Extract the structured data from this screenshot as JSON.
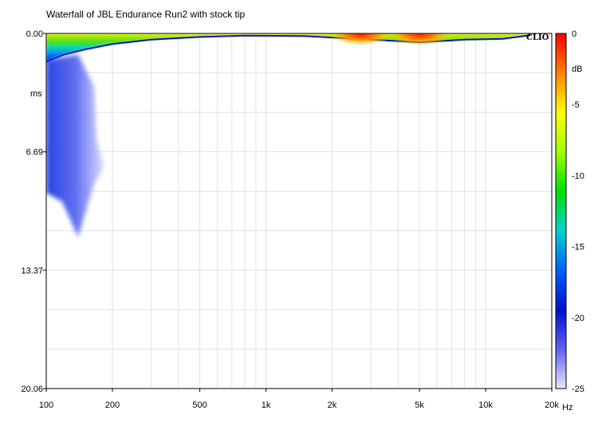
{
  "chart_data": {
    "type": "heatmap",
    "title": "Waterfall of JBL Endurance Run2 with stock tip",
    "xlabel": "Hz",
    "ylabel": "ms",
    "x_scale": "log",
    "xlim": [
      100,
      20000
    ],
    "ylim": [
      0,
      20.06
    ],
    "x_ticks": [
      {
        "value": 100,
        "label": "100"
      },
      {
        "value": 200,
        "label": "200"
      },
      {
        "value": 500,
        "label": "500"
      },
      {
        "value": 1000,
        "label": "1k"
      },
      {
        "value": 2000,
        "label": "2k"
      },
      {
        "value": 5000,
        "label": "5k"
      },
      {
        "value": 10000,
        "label": "10k"
      },
      {
        "value": 20000,
        "label": "20k"
      }
    ],
    "y_ticks": [
      {
        "value": 0,
        "label": "0.00"
      },
      {
        "value": 6.69,
        "label": "6.69"
      },
      {
        "value": 13.37,
        "label": "13.37"
      },
      {
        "value": 20.06,
        "label": "20.06"
      }
    ],
    "colorbar": {
      "label": "dB",
      "range": [
        -25,
        0
      ],
      "ticks": [
        {
          "value": 0,
          "label": "0"
        },
        {
          "value": -5,
          "label": "-5"
        },
        {
          "value": -10,
          "label": "-10"
        },
        {
          "value": -15,
          "label": "-15"
        },
        {
          "value": -20,
          "label": "-20"
        },
        {
          "value": -25,
          "label": "-25"
        }
      ],
      "stops": [
        "#ff0000",
        "#ff8000",
        "#ffff00",
        "#a0ff00",
        "#00e000",
        "#00d0d0",
        "#0060ff",
        "#0010d0",
        "#6060f0",
        "#e8e8ff"
      ]
    },
    "gridlines": true,
    "watermark": "CLIO",
    "decay_ridge": [
      {
        "hz": 100,
        "ms": 1.6
      },
      {
        "hz": 120,
        "ms": 1.2
      },
      {
        "hz": 150,
        "ms": 0.9
      },
      {
        "hz": 200,
        "ms": 0.6
      },
      {
        "hz": 300,
        "ms": 0.35
      },
      {
        "hz": 500,
        "ms": 0.2
      },
      {
        "hz": 800,
        "ms": 0.12
      },
      {
        "hz": 1500,
        "ms": 0.15
      },
      {
        "hz": 3000,
        "ms": 0.35
      },
      {
        "hz": 5000,
        "ms": 0.5
      },
      {
        "hz": 8000,
        "ms": 0.35
      },
      {
        "hz": 12000,
        "ms": 0.3
      },
      {
        "hz": 16000,
        "ms": 0.1
      }
    ],
    "peak_regions": [
      {
        "hz": 2700,
        "ms": 0.05,
        "db": 0
      },
      {
        "hz": 5000,
        "ms": 0.05,
        "db": 0
      }
    ],
    "low_freq_tail": {
      "hz_range": [
        100,
        200
      ],
      "ms_range": [
        0,
        11.5
      ],
      "db_range": [
        -25,
        -18
      ]
    }
  }
}
